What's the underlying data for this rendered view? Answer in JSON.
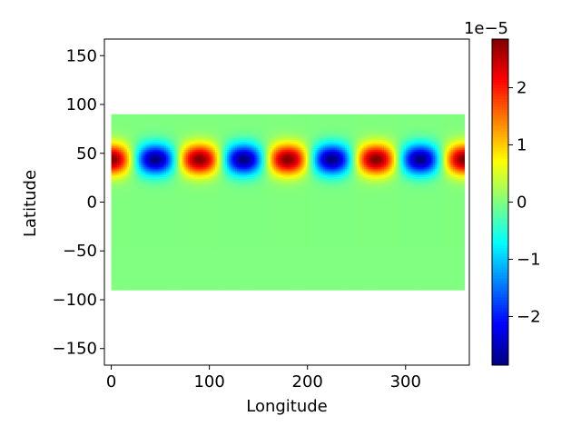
{
  "chart_data": {
    "type": "heatmap",
    "title": "",
    "xlabel": "Longitude",
    "ylabel": "Latitude",
    "xlim": [
      -7,
      365
    ],
    "ylim": [
      -167,
      167
    ],
    "xticks": [
      0,
      100,
      200,
      300
    ],
    "yticks": [
      -150,
      -100,
      -50,
      0,
      50,
      100,
      150
    ],
    "grid": false,
    "data_extent": {
      "lon": [
        0,
        360
      ],
      "lat": [
        -90,
        90
      ]
    },
    "field": {
      "description": "wave pattern along latitude band",
      "center_lat": 44,
      "lat_halfwidth": 18,
      "zonal_wavenumber": 4,
      "phase_maxima_lon": [
        0,
        90,
        180,
        270,
        360
      ],
      "phase_minima_lon": [
        45,
        135,
        225,
        315
      ],
      "amplitude": 2.85e-05
    },
    "colorbar": {
      "colormap": "jet",
      "range": [
        -2.85e-05,
        2.85e-05
      ],
      "ticks": [
        -2,
        -1,
        0,
        1,
        2
      ],
      "tick_labels": [
        "−2",
        "−1",
        "0",
        "1",
        "2"
      ],
      "multiplier_label": "1e−5"
    }
  }
}
